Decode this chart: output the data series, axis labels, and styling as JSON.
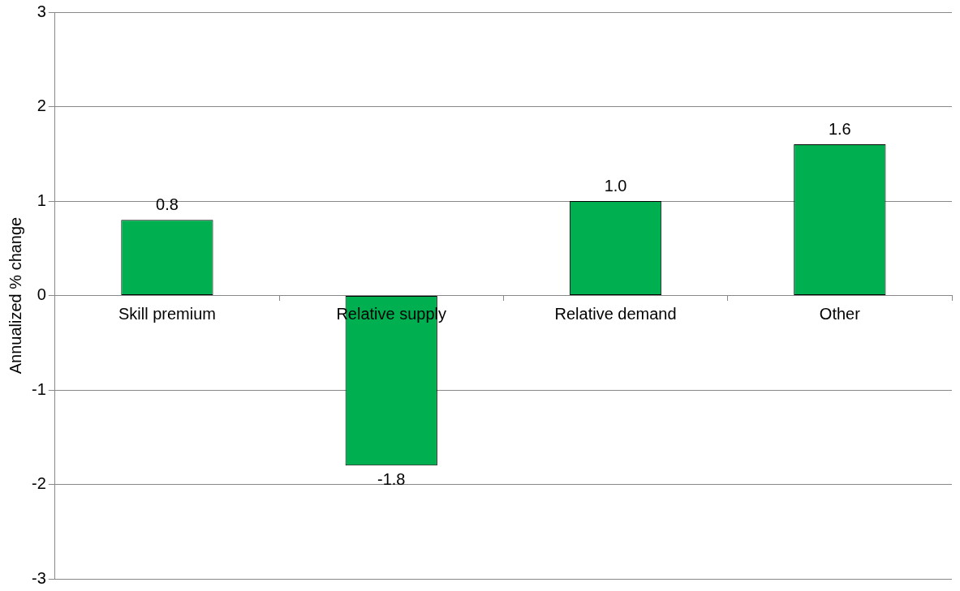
{
  "chart_data": {
    "type": "bar",
    "ylabel": "Annualized % change",
    "categories": [
      "Skill premium",
      "Relative supply",
      "Relative demand",
      "Other"
    ],
    "values": [
      0.8,
      -1.8,
      1.0,
      1.6
    ],
    "value_labels": [
      "0.8",
      "-1.8",
      "1.0",
      "1.6"
    ],
    "color": "#00b050",
    "ylim": [
      -3,
      3
    ],
    "yticks": [
      -3,
      -2,
      -1,
      0,
      1,
      2,
      3
    ],
    "grid": "y",
    "legend": false
  }
}
